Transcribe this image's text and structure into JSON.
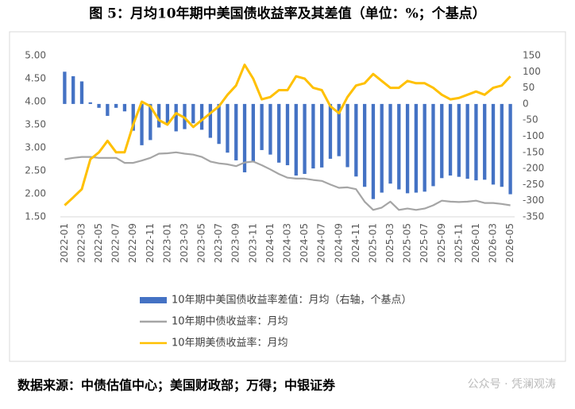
{
  "chart_data": {
    "type": "bar-line",
    "title": "图 5：月均10年期中美国债收益率及其差值（单位：%；个基点）",
    "source": "数据来源：中债估值中心；美国财政部；万得；中银证券",
    "watermark": "公众号 · 凭澜观涛",
    "categories": [
      "2022-01",
      null,
      "2022-03",
      null,
      "2022-05",
      null,
      "2022-07",
      null,
      "2022-09",
      null,
      "2022-11",
      null,
      "2023-01",
      null,
      "2023-03",
      null,
      "2023-05",
      null,
      "2023-07",
      null,
      "2023-09",
      null,
      "2023-11",
      null,
      "2024-01",
      null,
      "2024-03",
      null,
      "2024-05",
      null,
      "2024-07",
      null,
      "2024-09",
      null,
      "2024-11",
      null,
      "2025-01",
      null,
      "2025-03",
      null,
      "2025-05",
      null,
      "2025-07",
      null,
      "2025-09",
      null,
      "2025-11",
      null,
      "2026-01",
      null,
      "2026-03",
      null,
      "2026-05"
    ],
    "series": [
      {
        "name": "10年期中美国债收益率差值：月均（右轴，个基点）",
        "kind": "bar",
        "axis": "y2",
        "color": "#4472c4",
        "values": [
          100,
          86,
          70,
          5,
          -12,
          -37,
          -12,
          -23,
          -83,
          -128,
          -112,
          -73,
          -62,
          -85,
          -78,
          -60,
          -80,
          -105,
          -124,
          -151,
          -175,
          -212,
          -180,
          -143,
          -157,
          -182,
          -190,
          -222,
          -217,
          -200,
          -197,
          -170,
          -162,
          -196,
          -225,
          -257,
          -295,
          -275,
          -247,
          -265,
          -277,
          -275,
          -272,
          -255,
          -230,
          -222,
          -226,
          -232,
          -237,
          -235,
          -250,
          -257,
          -280
        ]
      },
      {
        "name": "10年期中债收益率：月均",
        "kind": "line",
        "color": "#a5a5a5",
        "values": [
          2.75,
          2.78,
          2.8,
          2.8,
          2.78,
          2.78,
          2.78,
          2.67,
          2.67,
          2.72,
          2.78,
          2.87,
          2.88,
          2.9,
          2.87,
          2.85,
          2.8,
          2.7,
          2.66,
          2.64,
          2.6,
          2.68,
          2.7,
          2.62,
          2.53,
          2.43,
          2.35,
          2.33,
          2.33,
          2.3,
          2.28,
          2.2,
          2.13,
          2.14,
          2.1,
          1.83,
          1.65,
          1.7,
          1.83,
          1.65,
          1.68,
          1.65,
          1.68,
          1.75,
          1.85,
          1.83,
          1.82,
          1.83,
          1.85,
          1.8,
          1.8,
          1.78,
          1.75
        ]
      },
      {
        "name": "10年期美债收益率：月均",
        "kind": "line",
        "color": "#ffc000",
        "values": [
          1.75,
          1.92,
          2.1,
          2.75,
          2.9,
          3.15,
          2.9,
          2.9,
          3.5,
          4.0,
          3.9,
          3.6,
          3.5,
          3.75,
          3.65,
          3.45,
          3.6,
          3.75,
          3.9,
          4.15,
          4.35,
          4.8,
          4.5,
          4.05,
          4.1,
          4.25,
          4.25,
          4.55,
          4.5,
          4.3,
          4.25,
          3.9,
          3.75,
          4.1,
          4.35,
          4.4,
          4.6,
          4.45,
          4.3,
          4.3,
          4.45,
          4.4,
          4.4,
          4.3,
          4.15,
          4.05,
          4.08,
          4.15,
          4.22,
          4.15,
          4.3,
          4.35,
          4.55
        ]
      }
    ],
    "ylim": [
      1.5,
      5
    ],
    "yticks": [
      {
        "value": 1.5,
        "label": "1.50"
      },
      {
        "value": 2,
        "label": "2.00"
      },
      {
        "value": 2.5,
        "label": "2.50"
      },
      {
        "value": 3,
        "label": "3.00"
      },
      {
        "value": 3.5,
        "label": "3.50"
      },
      {
        "value": 4,
        "label": "4.00"
      },
      {
        "value": 4.5,
        "label": "4.50"
      },
      {
        "value": 5,
        "label": "5.00"
      }
    ],
    "y2lim": [
      -350,
      150
    ],
    "y2ticks": [
      -350,
      -300,
      -250,
      -200,
      -150,
      -100,
      -50,
      0,
      50,
      100,
      150
    ]
  }
}
